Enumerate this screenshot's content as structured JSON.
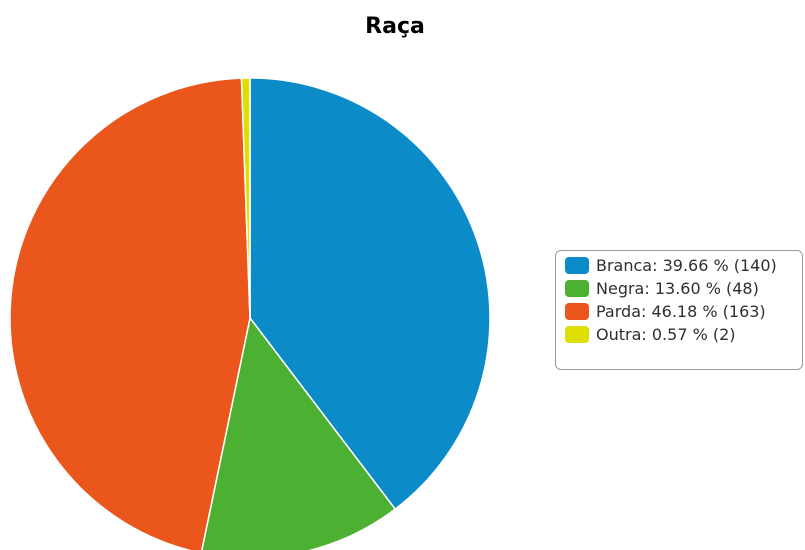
{
  "chart_data": {
    "type": "pie",
    "title": "Raça",
    "legend_position": "right",
    "slices": [
      {
        "label": "Branca: 39.66 % (140)",
        "value": 140,
        "percent": 39.66,
        "color": "#0b8bc8"
      },
      {
        "label": "Negra: 13.60 % (48)",
        "value": 48,
        "percent": 13.6,
        "color": "#4cb033"
      },
      {
        "label": "Parda: 46.18 % (163)",
        "value": 163,
        "percent": 46.18,
        "color": "#ea561b"
      },
      {
        "label": "Outra: 0.57 % (2)",
        "value": 2,
        "percent": 0.57,
        "color": "#dede00"
      }
    ]
  }
}
